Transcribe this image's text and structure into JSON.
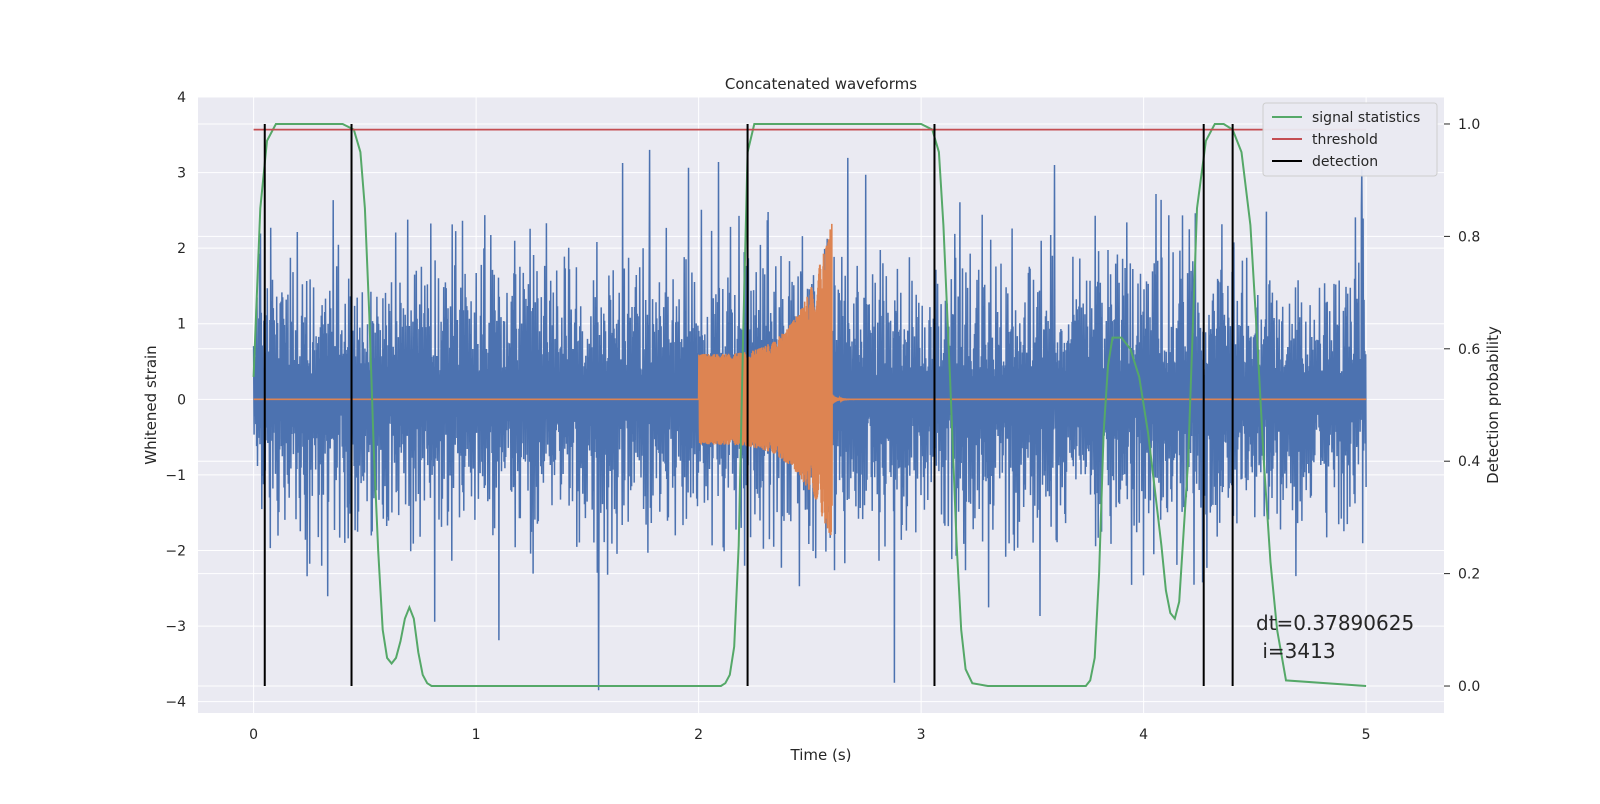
{
  "chart_data": {
    "type": "line",
    "title": "Concatenated waveforms",
    "xlabel": "Time (s)",
    "ylabel": "Whitened strain",
    "y2label": "Detection probability",
    "xlim": [
      -0.25,
      5.35
    ],
    "ylim": [
      -4.15,
      4.0
    ],
    "y2lim": [
      -0.048,
      1.048
    ],
    "xticks": [
      0,
      1,
      2,
      3,
      4,
      5
    ],
    "yticks": [
      -4,
      -3,
      -2,
      -1,
      0,
      1,
      2,
      3,
      4
    ],
    "y2ticks": [
      0.0,
      0.2,
      0.4,
      0.6,
      0.8,
      1.0
    ],
    "ytick_labels": [
      "−4",
      "−3",
      "−2",
      "−1",
      "0",
      "1",
      "2",
      "3",
      "4"
    ],
    "y2tick_labels": [
      "0.0",
      "0.2",
      "0.4",
      "0.6",
      "0.8",
      "1.0"
    ],
    "grid": true,
    "legend_position": "top-right",
    "annotation": [
      "dt=0.37890625",
      " i=3413"
    ],
    "noise_strain": {
      "x_range": [
        0,
        5
      ],
      "typical_envelope": [
        -1.8,
        2.3
      ],
      "peak_values": [
        {
          "x": 1.78,
          "y": 3.3
        },
        {
          "x": 1.55,
          "y": -3.85
        },
        {
          "x": 2.88,
          "y": -3.75
        },
        {
          "x": 3.6,
          "y": 3.1
        },
        {
          "x": 4.98,
          "y": 3.05
        }
      ],
      "color": "#4c72b0"
    },
    "injected_waveform": {
      "x_range": [
        0,
        5
      ],
      "chirp_start": 2.0,
      "chirp_end": 2.6,
      "amplitude_start": 0.6,
      "amplitude_peak_pos": 2.35,
      "amplitude_peak_neg": -1.9,
      "color": "#dd8452"
    },
    "series": [
      {
        "name": "signal statistics",
        "color": "#55a868",
        "x": [
          0,
          0.03,
          0.06,
          0.1,
          0.2,
          0.4,
          0.45,
          0.48,
          0.5,
          0.52,
          0.54,
          0.56,
          0.58,
          0.6,
          0.62,
          0.64,
          0.66,
          0.68,
          0.7,
          0.72,
          0.74,
          0.76,
          0.78,
          0.8,
          0.82,
          0.85,
          0.9,
          1.0,
          1.5,
          2.0,
          2.1,
          2.12,
          2.14,
          2.16,
          2.18,
          2.2,
          2.22,
          2.25,
          2.3,
          2.6,
          3.0,
          3.05,
          3.08,
          3.1,
          3.13,
          3.16,
          3.18,
          3.2,
          3.23,
          3.3,
          3.5,
          3.74,
          3.76,
          3.78,
          3.8,
          3.82,
          3.84,
          3.86,
          3.9,
          3.94,
          3.98,
          4.02,
          4.05,
          4.08,
          4.1,
          4.12,
          4.14,
          4.16,
          4.2,
          4.24,
          4.28,
          4.32,
          4.36,
          4.4,
          4.44,
          4.48,
          4.51,
          4.54,
          4.57,
          4.6,
          4.64,
          5.0
        ],
        "y": [
          0.55,
          0.85,
          0.97,
          1.0,
          1.0,
          1.0,
          0.99,
          0.95,
          0.85,
          0.66,
          0.42,
          0.24,
          0.1,
          0.05,
          0.04,
          0.05,
          0.08,
          0.12,
          0.14,
          0.12,
          0.06,
          0.02,
          0.005,
          0.0,
          0.0,
          0.0,
          0.0,
          0.0,
          0.0,
          0.0,
          0.0,
          0.005,
          0.02,
          0.07,
          0.25,
          0.62,
          0.95,
          1.0,
          1.0,
          1.0,
          1.0,
          0.99,
          0.95,
          0.82,
          0.55,
          0.25,
          0.1,
          0.03,
          0.005,
          0.0,
          0.0,
          0.0,
          0.01,
          0.05,
          0.2,
          0.45,
          0.57,
          0.62,
          0.62,
          0.6,
          0.55,
          0.45,
          0.35,
          0.25,
          0.17,
          0.13,
          0.12,
          0.15,
          0.4,
          0.85,
          0.97,
          1.0,
          1.0,
          0.99,
          0.95,
          0.82,
          0.62,
          0.4,
          0.22,
          0.1,
          0.01,
          0.0
        ]
      },
      {
        "name": "threshold",
        "color": "#c44e52",
        "x": [
          0,
          5
        ],
        "y": [
          0.99,
          0.99
        ]
      },
      {
        "name": "detection",
        "color": "#000000",
        "x": [
          0.05,
          0.44,
          2.22,
          3.06,
          4.27,
          4.4
        ],
        "y": [
          1.0,
          1.0,
          1.0,
          1.0,
          1.0,
          1.0
        ]
      }
    ]
  }
}
